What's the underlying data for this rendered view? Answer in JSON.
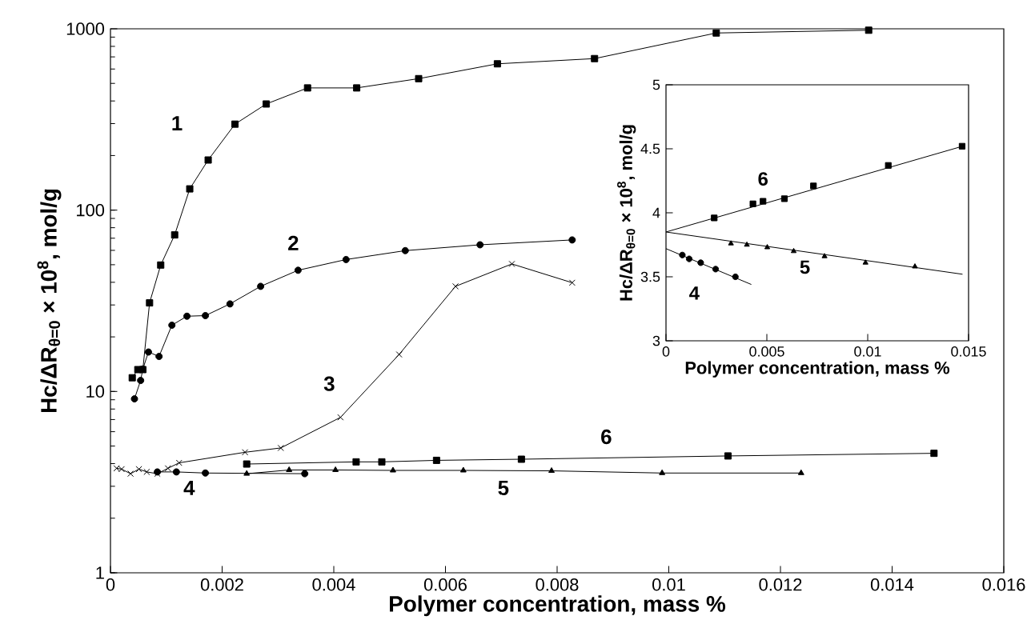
{
  "chart_data": [
    {
      "type": "line",
      "xlabel": "Polymer concentration,   mass %",
      "ylabel": "Hc/ΔR$_{θ=0}$ × 10$^{8}$,  mol/g",
      "log": "y",
      "xlim": [
        0,
        0.016
      ],
      "ylim": [
        1,
        1000
      ],
      "xticks": [
        0,
        0.002,
        0.004,
        0.006,
        0.008,
        0.01,
        0.012,
        0.014,
        0.016
      ],
      "yticks": [
        1,
        10,
        100,
        1000
      ],
      "grid": false,
      "series": [
        {
          "name": "1",
          "color": "#000000",
          "marker": "square",
          "x": [
            0.00039,
            0.00049,
            0.00058,
            0.0007,
            0.0009,
            0.00115,
            0.00142,
            0.00175,
            0.00223,
            0.00279,
            0.00353,
            0.00441,
            0.00552,
            0.00693,
            0.00867,
            0.01085,
            0.01358
          ],
          "values": [
            11.9,
            13.2,
            13.2,
            30.8,
            49.8,
            73,
            131,
            189,
            298,
            385,
            472,
            472,
            531,
            641,
            685,
            948,
            982
          ]
        },
        {
          "name": "2",
          "color": "#000000",
          "marker": "circle",
          "x": [
            0.00043,
            0.00054,
            0.00058,
            0.00068,
            0.00087,
            0.0011,
            0.00137,
            0.0017,
            0.00214,
            0.00269,
            0.00336,
            0.00422,
            0.00528,
            0.00662,
            0.00827
          ],
          "values": [
            9.1,
            11.5,
            13.3,
            16.5,
            15.6,
            23.2,
            26,
            26.2,
            30.4,
            38,
            46.6,
            53.4,
            59.8,
            64.4,
            68.5
          ]
        },
        {
          "name": "3",
          "color": "#000000",
          "marker": "cross",
          "x": [
            0.00011,
            0.0002,
            0.00036,
            0.00051,
            0.00065,
            0.00084,
            0.00103,
            0.00123,
            0.00241,
            0.00305,
            0.00412,
            0.00517,
            0.00618,
            0.00719,
            0.00827
          ],
          "values": [
            3.77,
            3.73,
            3.52,
            3.73,
            3.6,
            3.52,
            3.77,
            4.04,
            4.62,
            4.88,
            7.2,
            16,
            38,
            50.5,
            39.8
          ]
        },
        {
          "name": "4",
          "color": "#000000",
          "marker": "circle",
          "x": [
            0.00084,
            0.00118,
            0.0017,
            0.00348
          ],
          "values": [
            3.6,
            3.6,
            3.55,
            3.52
          ]
        },
        {
          "name": "5",
          "color": "#000000",
          "marker": "triangle",
          "x": [
            0.00244,
            0.0032,
            0.00403,
            0.00506,
            0.00632,
            0.0079,
            0.00988,
            0.01237
          ],
          "values": [
            3.52,
            3.69,
            3.69,
            3.67,
            3.67,
            3.65,
            3.55,
            3.55
          ]
        },
        {
          "name": "6",
          "color": "#000000",
          "marker": "square",
          "x": [
            0.00244,
            0.0044,
            0.00486,
            0.00584,
            0.00736,
            0.01106,
            0.01475
          ],
          "values": [
            3.98,
            4.09,
            4.09,
            4.17,
            4.23,
            4.41,
            4.56
          ]
        }
      ]
    },
    {
      "type": "scatter",
      "xlabel": "Polymer concentration, mass %",
      "ylabel": "Hc/ΔR$_{θ=0}$ × 10$^{8}$,  mol/g",
      "xlim": [
        0,
        0.015
      ],
      "ylim": [
        3,
        5
      ],
      "xticks": [
        0,
        0.005,
        0.01,
        0.015
      ],
      "yticks": [
        3,
        3.5,
        4,
        4.5,
        5
      ],
      "grid": false,
      "series": [
        {
          "name": "6",
          "color": "#000000",
          "marker": "square",
          "x": [
            0.00239,
            0.00431,
            0.00481,
            0.00587,
            0.00731,
            0.01102,
            0.01468
          ],
          "values": [
            3.96,
            4.07,
            4.09,
            4.11,
            4.21,
            4.37,
            4.52
          ]
        },
        {
          "type": "line",
          "color": "#000000",
          "marker": "none",
          "x": [
            0,
            0.0147
          ],
          "values": [
            3.85,
            4.52
          ]
        },
        {
          "name": "5",
          "color": "#000000",
          "marker": "triangle",
          "x": [
            0.00322,
            0.00401,
            0.00502,
            0.00633,
            0.00786,
            0.00989,
            0.01234
          ],
          "values": [
            3.76,
            3.75,
            3.73,
            3.7,
            3.66,
            3.61,
            3.58
          ]
        },
        {
          "type": "line",
          "color": "#000000",
          "marker": "none",
          "x": [
            0,
            0.0147
          ],
          "values": [
            3.85,
            3.52
          ]
        },
        {
          "name": "4",
          "color": "#000000",
          "marker": "circle",
          "x": [
            0.00081,
            0.00115,
            0.00172,
            0.00246,
            0.00344
          ],
          "values": [
            3.67,
            3.64,
            3.61,
            3.56,
            3.5
          ]
        },
        {
          "type": "line",
          "color": "#000000",
          "marker": "none",
          "x": [
            0,
            0.00423
          ],
          "values": [
            3.72,
            3.44
          ]
        }
      ]
    }
  ]
}
